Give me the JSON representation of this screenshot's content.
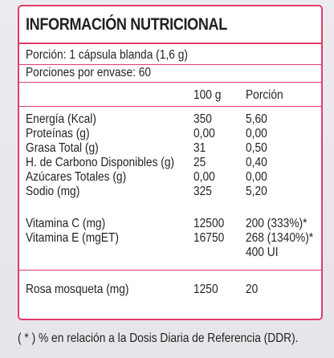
{
  "title": "INFORMACIÓN NUTRICIONAL",
  "portion_line": "Porción: 1 cápsula blanda (1,6 g)",
  "servings_line": "Porciones por envase: 60",
  "headers": {
    "col1": "",
    "col2": "100 g",
    "col3": "Porción"
  },
  "rows": [
    {
      "name": "Energía (Kcal)",
      "per100": "350",
      "portion": "5,60"
    },
    {
      "name": "Proteínas (g)",
      "per100": "0,00",
      "portion": "0,00"
    },
    {
      "name": "Grasa Total (g)",
      "per100": "31",
      "portion": "0,50"
    },
    {
      "name": "H. de Carbono Disponibles (g)",
      "per100": "25",
      "portion": "0,40"
    },
    {
      "name": "Azúcares Totales (g)",
      "per100": "0,00",
      "portion": "0,00"
    },
    {
      "name": "Sodio (mg)",
      "per100": "325",
      "portion": "5,20"
    },
    {
      "name": "Vitamina C (mg)",
      "per100": "12500",
      "portion": "200 (333%)*"
    },
    {
      "name": "Vitamina E (mgET)",
      "per100": "16750",
      "portion": "268 (1340%)*",
      "portion_extra": "400 UI"
    },
    {
      "name": "Rosa mosqueta  (mg)",
      "per100": "1250",
      "portion": "20"
    }
  ],
  "footnote": "( * ) % en relación a la Dosis Diaria de Referencia (DDR).",
  "colors": {
    "border": "#e03c6a",
    "text": "#231f20",
    "background": "#ecebef"
  }
}
